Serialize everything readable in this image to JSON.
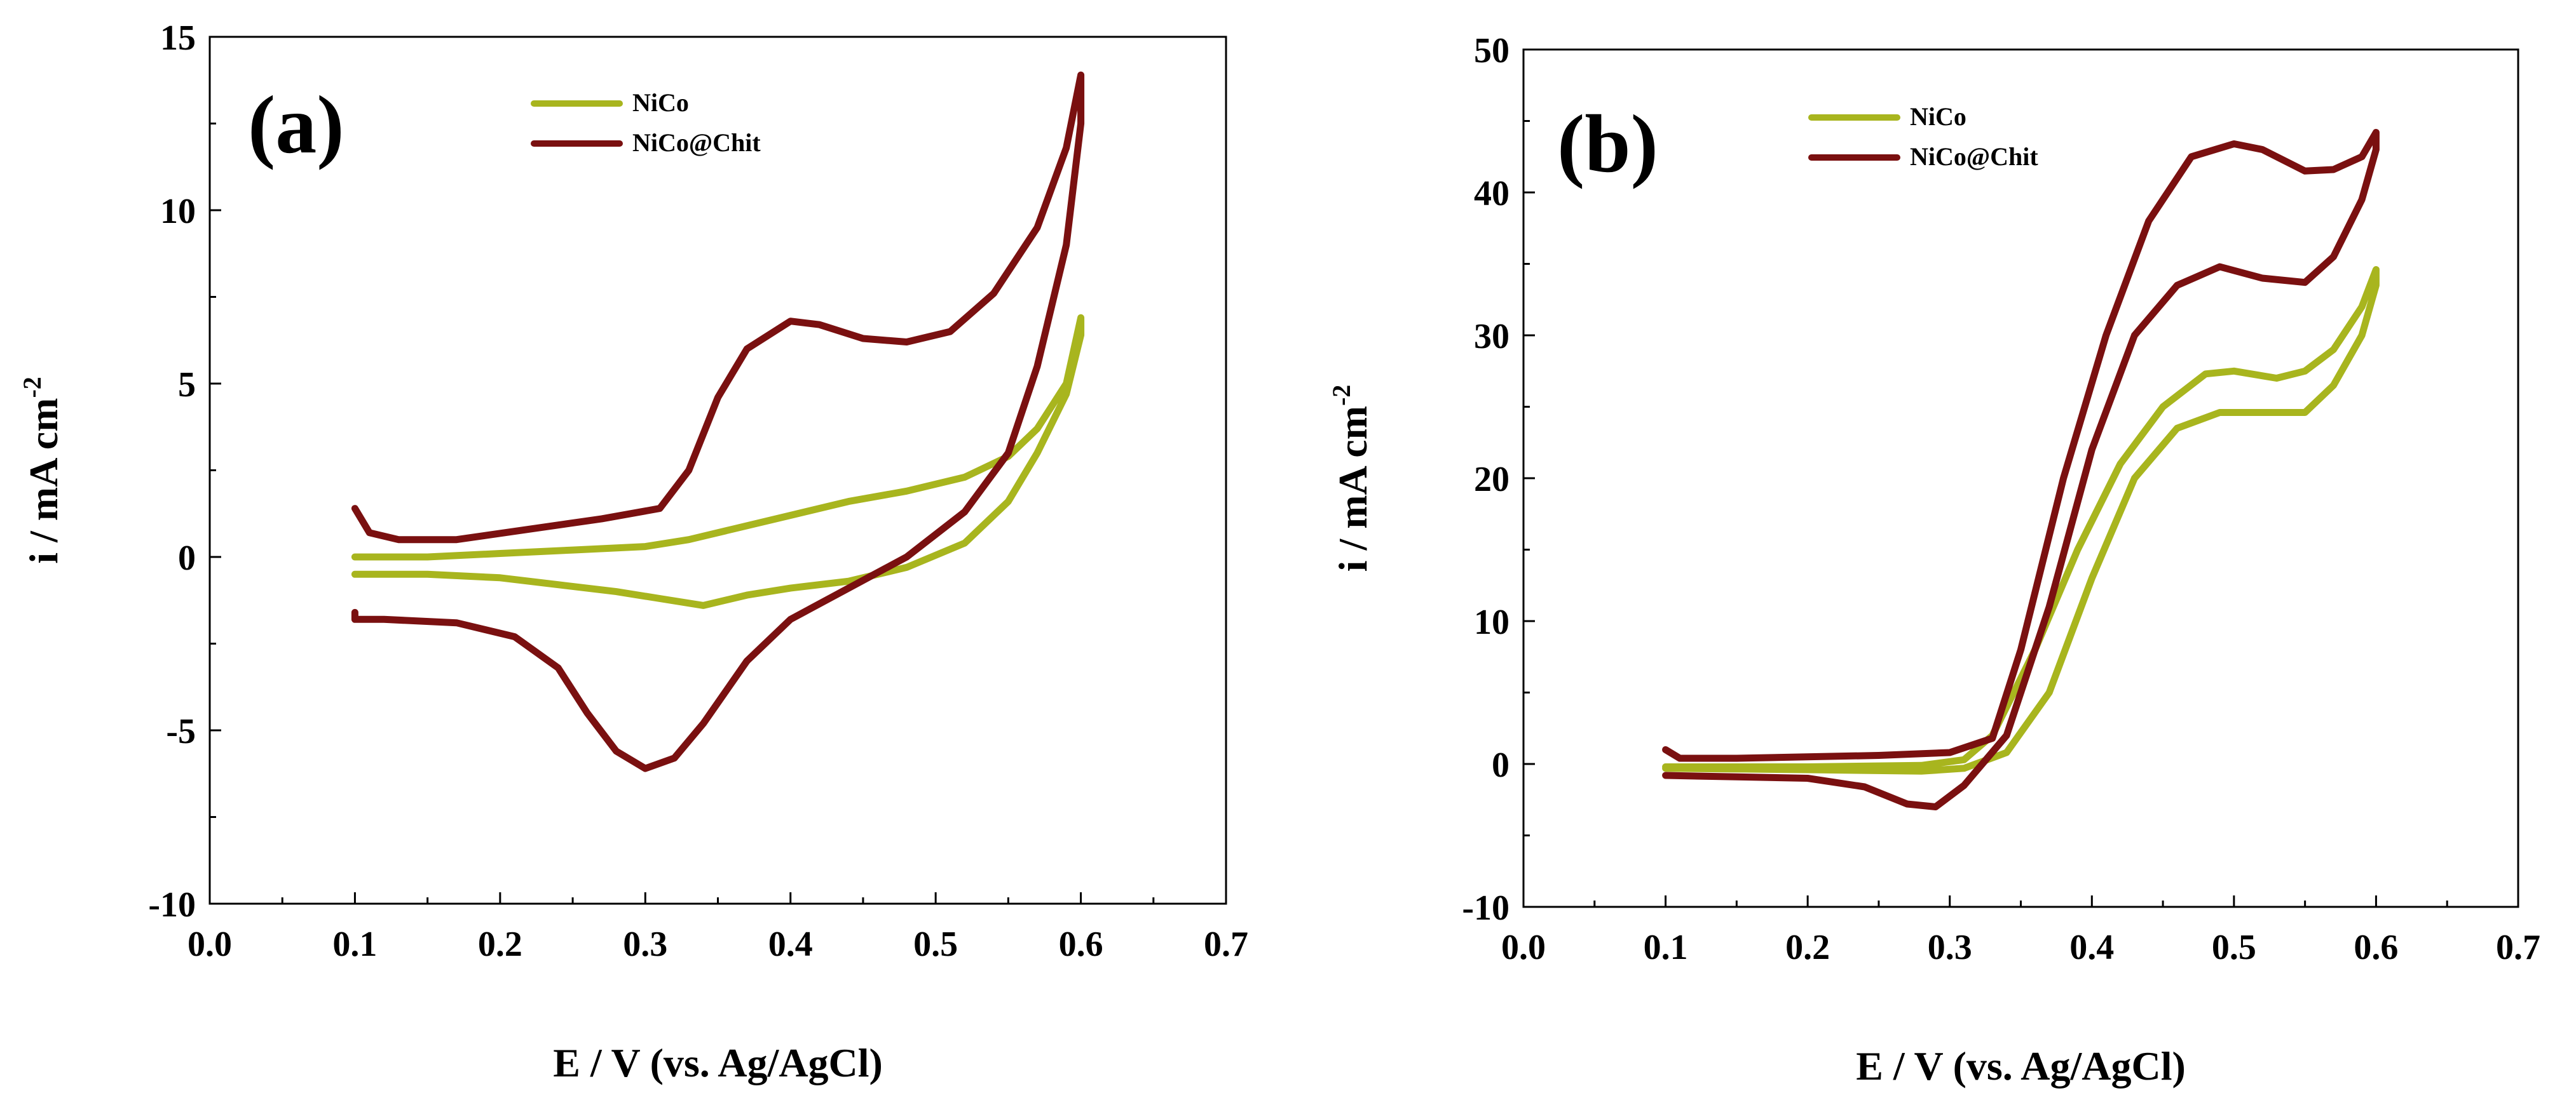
{
  "chart_data": [
    {
      "type": "line",
      "panel_label": "(a)",
      "xlabel": "E / V (vs. Ag/AgCl)",
      "ylabel_main": "i / mA cm",
      "ylabel_sup": "-2",
      "xlim": [
        0.0,
        0.7
      ],
      "ylim": [
        -10,
        15
      ],
      "x_ticks": [
        0.0,
        0.1,
        0.2,
        0.3,
        0.4,
        0.5,
        0.6,
        0.7
      ],
      "x_tick_labels": [
        "0.0",
        "0.1",
        "0.2",
        "0.3",
        "0.4",
        "0.5",
        "0.6",
        "0.7"
      ],
      "y_ticks": [
        -10,
        -5,
        0,
        5,
        10,
        15
      ],
      "y_tick_labels": [
        "-10",
        "-5",
        "0",
        "5",
        "10",
        "15"
      ],
      "legend_position": "top-center",
      "series": [
        {
          "name": "NiCo",
          "color": "#a8b51e",
          "points": [
            [
              0.1,
              0.0
            ],
            [
              0.15,
              0.0
            ],
            [
              0.2,
              0.1
            ],
            [
              0.25,
              0.2
            ],
            [
              0.3,
              0.3
            ],
            [
              0.33,
              0.5
            ],
            [
              0.36,
              0.8
            ],
            [
              0.4,
              1.2
            ],
            [
              0.44,
              1.6
            ],
            [
              0.48,
              1.9
            ],
            [
              0.52,
              2.3
            ],
            [
              0.55,
              2.9
            ],
            [
              0.57,
              3.7
            ],
            [
              0.59,
              5.0
            ],
            [
              0.6,
              6.9
            ],
            [
              0.6,
              6.4
            ],
            [
              0.59,
              4.7
            ],
            [
              0.57,
              3.0
            ],
            [
              0.55,
              1.6
            ],
            [
              0.52,
              0.4
            ],
            [
              0.48,
              -0.3
            ],
            [
              0.44,
              -0.7
            ],
            [
              0.4,
              -0.9
            ],
            [
              0.37,
              -1.1
            ],
            [
              0.34,
              -1.4
            ],
            [
              0.31,
              -1.2
            ],
            [
              0.28,
              -1.0
            ],
            [
              0.24,
              -0.8
            ],
            [
              0.2,
              -0.6
            ],
            [
              0.15,
              -0.5
            ],
            [
              0.1,
              -0.5
            ]
          ]
        },
        {
          "name": "NiCo@Chit",
          "color": "#7a1010",
          "points": [
            [
              0.1,
              1.4
            ],
            [
              0.11,
              0.7
            ],
            [
              0.13,
              0.5
            ],
            [
              0.17,
              0.5
            ],
            [
              0.22,
              0.8
            ],
            [
              0.27,
              1.1
            ],
            [
              0.31,
              1.4
            ],
            [
              0.33,
              2.5
            ],
            [
              0.35,
              4.6
            ],
            [
              0.37,
              6.0
            ],
            [
              0.4,
              6.8
            ],
            [
              0.42,
              6.7
            ],
            [
              0.45,
              6.3
            ],
            [
              0.48,
              6.2
            ],
            [
              0.51,
              6.5
            ],
            [
              0.54,
              7.6
            ],
            [
              0.57,
              9.5
            ],
            [
              0.59,
              11.8
            ],
            [
              0.6,
              13.9
            ],
            [
              0.6,
              12.5
            ],
            [
              0.59,
              9.0
            ],
            [
              0.57,
              5.5
            ],
            [
              0.55,
              3.0
            ],
            [
              0.52,
              1.3
            ],
            [
              0.48,
              0.0
            ],
            [
              0.44,
              -0.9
            ],
            [
              0.4,
              -1.8
            ],
            [
              0.37,
              -3.0
            ],
            [
              0.34,
              -4.8
            ],
            [
              0.32,
              -5.8
            ],
            [
              0.3,
              -6.1
            ],
            [
              0.28,
              -5.6
            ],
            [
              0.26,
              -4.5
            ],
            [
              0.24,
              -3.2
            ],
            [
              0.21,
              -2.3
            ],
            [
              0.17,
              -1.9
            ],
            [
              0.12,
              -1.8
            ],
            [
              0.1,
              -1.8
            ],
            [
              0.1,
              -1.6
            ]
          ]
        }
      ]
    },
    {
      "type": "line",
      "panel_label": "(b)",
      "xlabel": "E / V (vs. Ag/AgCl)",
      "ylabel_main": "i / mA cm",
      "ylabel_sup": "-2",
      "xlim": [
        0.0,
        0.7
      ],
      "ylim": [
        -10,
        50
      ],
      "x_ticks": [
        0.0,
        0.1,
        0.2,
        0.3,
        0.4,
        0.5,
        0.6,
        0.7
      ],
      "x_tick_labels": [
        "0.0",
        "0.1",
        "0.2",
        "0.3",
        "0.4",
        "0.5",
        "0.6",
        "0.7"
      ],
      "y_ticks": [
        -10,
        0,
        10,
        20,
        30,
        40,
        50
      ],
      "y_tick_labels": [
        "-10",
        "0",
        "10",
        "20",
        "30",
        "40",
        "50"
      ],
      "legend_position": "top-center",
      "series": [
        {
          "name": "NiCo",
          "color": "#a8b51e",
          "points": [
            [
              0.1,
              -0.2
            ],
            [
              0.2,
              -0.2
            ],
            [
              0.28,
              -0.1
            ],
            [
              0.31,
              0.3
            ],
            [
              0.33,
              2.0
            ],
            [
              0.36,
              8.0
            ],
            [
              0.39,
              15.0
            ],
            [
              0.42,
              21.0
            ],
            [
              0.45,
              25.0
            ],
            [
              0.48,
              27.3
            ],
            [
              0.5,
              27.5
            ],
            [
              0.53,
              27.0
            ],
            [
              0.55,
              27.5
            ],
            [
              0.57,
              29.0
            ],
            [
              0.59,
              32.0
            ],
            [
              0.6,
              34.6
            ],
            [
              0.6,
              33.5
            ],
            [
              0.59,
              30.0
            ],
            [
              0.57,
              26.5
            ],
            [
              0.55,
              24.6
            ],
            [
              0.52,
              24.6
            ],
            [
              0.49,
              24.6
            ],
            [
              0.46,
              23.5
            ],
            [
              0.43,
              20.0
            ],
            [
              0.4,
              13.0
            ],
            [
              0.37,
              5.0
            ],
            [
              0.34,
              0.8
            ],
            [
              0.31,
              -0.3
            ],
            [
              0.28,
              -0.5
            ],
            [
              0.2,
              -0.4
            ],
            [
              0.1,
              -0.3
            ]
          ]
        },
        {
          "name": "NiCo@Chit",
          "color": "#7a1010",
          "points": [
            [
              0.1,
              1.0
            ],
            [
              0.11,
              0.4
            ],
            [
              0.15,
              0.4
            ],
            [
              0.25,
              0.6
            ],
            [
              0.3,
              0.8
            ],
            [
              0.33,
              1.8
            ],
            [
              0.35,
              8.0
            ],
            [
              0.38,
              20.0
            ],
            [
              0.41,
              30.0
            ],
            [
              0.44,
              38.0
            ],
            [
              0.47,
              42.5
            ],
            [
              0.5,
              43.4
            ],
            [
              0.52,
              43.0
            ],
            [
              0.55,
              41.5
            ],
            [
              0.57,
              41.6
            ],
            [
              0.59,
              42.5
            ],
            [
              0.6,
              44.2
            ],
            [
              0.6,
              43.0
            ],
            [
              0.59,
              39.5
            ],
            [
              0.57,
              35.5
            ],
            [
              0.55,
              33.7
            ],
            [
              0.52,
              34.0
            ],
            [
              0.49,
              34.8
            ],
            [
              0.46,
              33.5
            ],
            [
              0.43,
              30.0
            ],
            [
              0.4,
              22.0
            ],
            [
              0.37,
              11.0
            ],
            [
              0.34,
              2.0
            ],
            [
              0.31,
              -1.5
            ],
            [
              0.29,
              -3.0
            ],
            [
              0.27,
              -2.8
            ],
            [
              0.24,
              -1.6
            ],
            [
              0.2,
              -1.0
            ],
            [
              0.15,
              -0.9
            ],
            [
              0.1,
              -0.8
            ]
          ]
        }
      ]
    }
  ]
}
